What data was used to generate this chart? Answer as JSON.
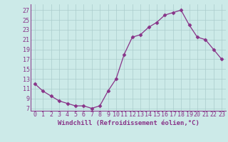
{
  "x": [
    0,
    1,
    2,
    3,
    4,
    5,
    6,
    7,
    8,
    9,
    10,
    11,
    12,
    13,
    14,
    15,
    16,
    17,
    18,
    19,
    20,
    21,
    22,
    23
  ],
  "y": [
    12,
    10.5,
    9.5,
    8.5,
    8,
    7.5,
    7.5,
    7,
    7.5,
    10.5,
    13,
    18,
    21.5,
    22,
    23.5,
    24.5,
    26,
    26.5,
    27,
    24,
    21.5,
    21,
    19,
    17
  ],
  "line_color": "#883388",
  "marker": "D",
  "marker_size": 2.5,
  "bg_color": "#cceae8",
  "grid_color": "#aacccc",
  "xlabel": "Windchill (Refroidissement éolien,°C)",
  "xlabel_fontsize": 6.5,
  "yticks": [
    7,
    9,
    11,
    13,
    15,
    17,
    19,
    21,
    23,
    25,
    27
  ],
  "xticks": [
    0,
    1,
    2,
    3,
    4,
    5,
    6,
    7,
    8,
    9,
    10,
    11,
    12,
    13,
    14,
    15,
    16,
    17,
    18,
    19,
    20,
    21,
    22,
    23
  ],
  "ylim": [
    6.5,
    28.2
  ],
  "xlim": [
    -0.5,
    23.5
  ],
  "tick_label_fontsize": 6.0
}
